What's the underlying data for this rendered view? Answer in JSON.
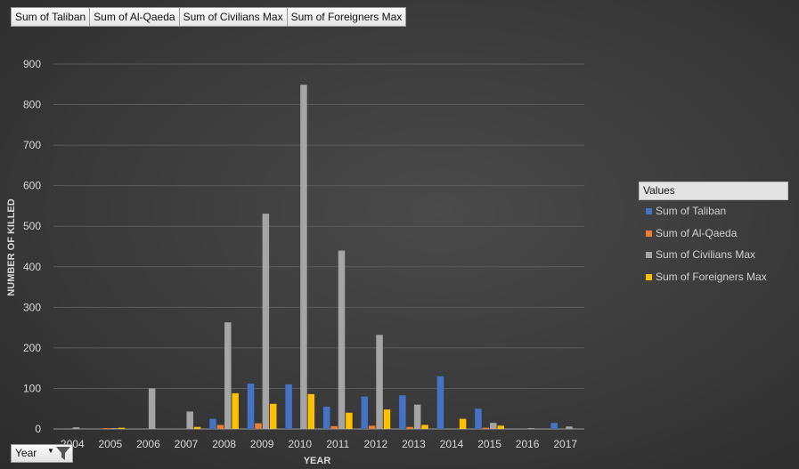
{
  "field_buttons": [
    "Sum of Taliban",
    "Sum of Al-Qaeda",
    "Sum of Civilians Max",
    "Sum of Foreigners Max"
  ],
  "legend_title": "Values",
  "filter_button": {
    "label": "Year"
  },
  "colors": {
    "taliban": "#4472c4",
    "alqaeda": "#ed7d31",
    "civilians": "#a5a5a5",
    "foreigners": "#ffc000"
  },
  "chart_data": {
    "type": "bar",
    "title": "",
    "xlabel": "YEAR",
    "ylabel": "NUMBER OF KILLED",
    "ylim": [
      0,
      900
    ],
    "yticks": [
      0,
      100,
      200,
      300,
      400,
      500,
      600,
      700,
      800,
      900
    ],
    "grid": true,
    "legend_position": "right",
    "categories": [
      "2004",
      "2005",
      "2006",
      "2007",
      "2008",
      "2009",
      "2010",
      "2011",
      "2012",
      "2013",
      "2014",
      "2015",
      "2016",
      "2017"
    ],
    "series": [
      {
        "name": "Sum of Taliban",
        "color": "#4472c4",
        "values": [
          0,
          0,
          0,
          0,
          25,
          112,
          110,
          55,
          80,
          83,
          130,
          50,
          0,
          15
        ]
      },
      {
        "name": "Sum of Al-Qaeda",
        "color": "#ed7d31",
        "values": [
          0,
          2,
          0,
          0,
          10,
          14,
          0,
          7,
          8,
          5,
          0,
          3,
          0,
          0
        ]
      },
      {
        "name": "Sum of Civilians Max",
        "color": "#a5a5a5",
        "values": [
          4,
          2,
          100,
          43,
          263,
          531,
          849,
          440,
          232,
          60,
          0,
          15,
          2,
          6
        ]
      },
      {
        "name": "Sum of Foreigners Max",
        "color": "#ffc000",
        "values": [
          0,
          3,
          0,
          5,
          88,
          62,
          86,
          40,
          48,
          10,
          25,
          8,
          0,
          0
        ]
      }
    ]
  }
}
